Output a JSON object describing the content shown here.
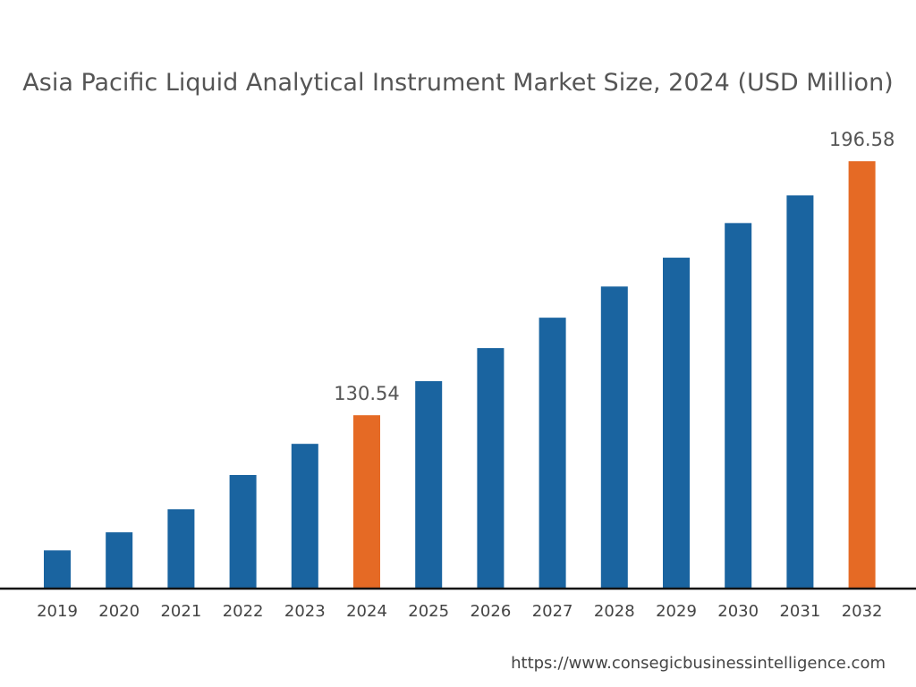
{
  "chart_data": {
    "type": "bar",
    "title": "Asia Pacific Liquid Analytical Instrument Market Size, 2024 (USD Million)",
    "xlabel": "",
    "ylabel": "",
    "categories": [
      "2019",
      "2020",
      "2021",
      "2022",
      "2023",
      "2024",
      "2025",
      "2026",
      "2027",
      "2028",
      "2029",
      "2030",
      "2031",
      "2032"
    ],
    "values": [
      95.4,
      100.1,
      106.1,
      115.0,
      123.1,
      130.54,
      139.4,
      148.0,
      155.9,
      164.0,
      171.5,
      180.5,
      187.7,
      196.58
    ],
    "data_labels": {
      "2024": "130.54",
      "2032": "196.58"
    },
    "highlight": [
      "2024",
      "2032"
    ],
    "ylim": [
      85.7,
      205
    ],
    "grid": false,
    "colors": {
      "bar": "#1a64a0",
      "highlight": "#e56a25",
      "axis": "#111111"
    }
  },
  "source": "https://www.consegicbusinessintelligence.com"
}
